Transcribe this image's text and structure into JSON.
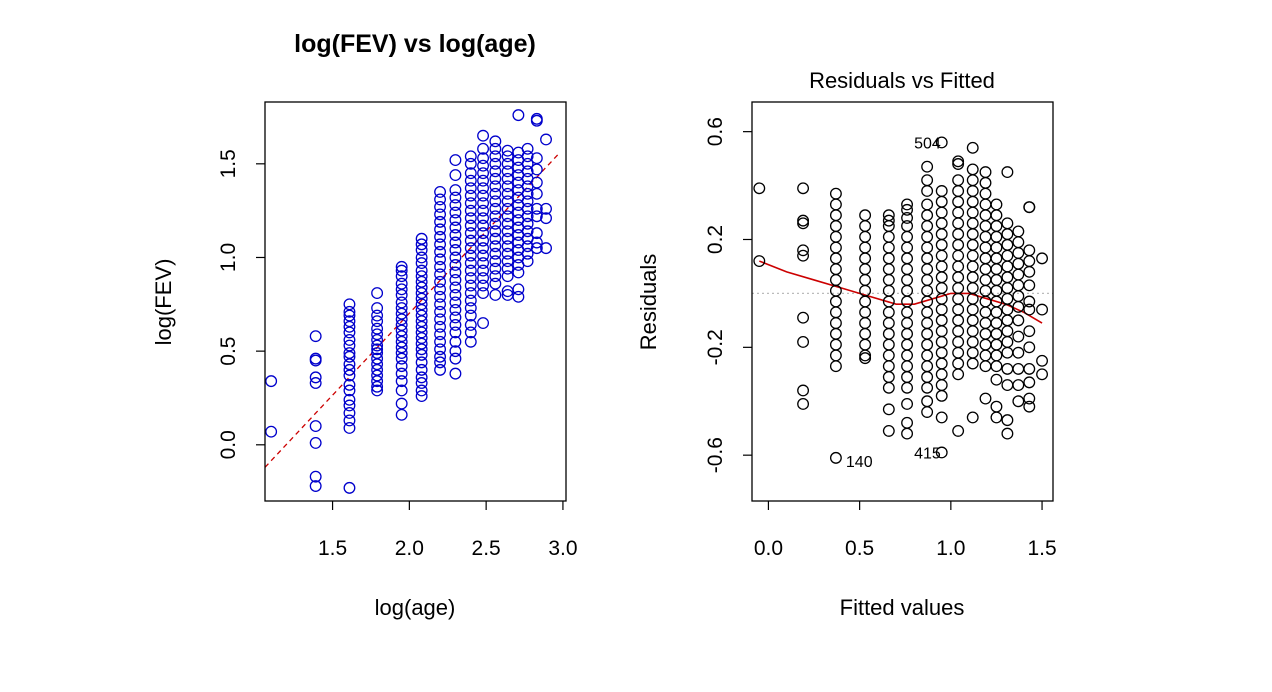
{
  "chart_data": [
    {
      "type": "scatter",
      "title": "log(FEV) vs log(age)",
      "xlabel": "log(age)",
      "ylabel": "log(FEV)",
      "xlim": [
        1.06,
        3.02
      ],
      "ylim": [
        -0.3,
        1.83
      ],
      "xticks": [
        "1.5",
        "2.0",
        "2.5",
        "3.0"
      ],
      "yticks": [
        "0.0",
        "0.5",
        "1.0",
        "1.5"
      ],
      "point_color": "#0000cc",
      "fit_line": {
        "style": "dashed",
        "color": "#cc0000",
        "x": [
          1.06,
          2.98
        ],
        "y": [
          -0.12,
          1.56
        ]
      },
      "x_levels": [
        1.1,
        1.39,
        1.61,
        1.79,
        1.95,
        2.08,
        2.2,
        2.3,
        2.4,
        2.48,
        2.56,
        2.64,
        2.71,
        2.77,
        2.83,
        2.89
      ],
      "columns": [
        {
          "x": 1.1,
          "y": [
            0.34,
            0.07
          ]
        },
        {
          "x": 1.39,
          "y": [
            0.58,
            0.46,
            0.45,
            0.36,
            0.33,
            0.1,
            0.01,
            -0.17,
            -0.22
          ]
        },
        {
          "x": 1.61,
          "y": [
            0.75,
            0.71,
            0.69,
            0.66,
            0.63,
            0.6,
            0.56,
            0.53,
            0.49,
            0.47,
            0.43,
            0.4,
            0.37,
            0.32,
            0.29,
            0.24,
            0.21,
            0.17,
            0.13,
            0.09,
            -0.23
          ]
        },
        {
          "x": 1.79,
          "y": [
            0.81,
            0.73,
            0.69,
            0.66,
            0.62,
            0.59,
            0.56,
            0.53,
            0.51,
            0.49,
            0.46,
            0.43,
            0.4,
            0.37,
            0.34,
            0.31,
            0.29
          ]
        },
        {
          "x": 1.95,
          "y": [
            0.95,
            0.93,
            0.9,
            0.86,
            0.83,
            0.8,
            0.76,
            0.73,
            0.7,
            0.67,
            0.64,
            0.61,
            0.58,
            0.55,
            0.52,
            0.49,
            0.46,
            0.42,
            0.38,
            0.34,
            0.29,
            0.22,
            0.16
          ]
        },
        {
          "x": 2.08,
          "y": [
            1.1,
            1.07,
            1.04,
            1.0,
            0.97,
            0.93,
            0.9,
            0.87,
            0.84,
            0.81,
            0.78,
            0.75,
            0.72,
            0.69,
            0.66,
            0.63,
            0.6,
            0.57,
            0.54,
            0.51,
            0.48,
            0.44,
            0.4,
            0.36,
            0.33,
            0.29,
            0.26
          ]
        },
        {
          "x": 2.2,
          "y": [
            1.35,
            1.31,
            1.27,
            1.23,
            1.19,
            1.15,
            1.11,
            1.07,
            1.03,
            0.99,
            0.95,
            0.91,
            0.87,
            0.83,
            0.79,
            0.75,
            0.71,
            0.67,
            0.63,
            0.59,
            0.55,
            0.51,
            0.47,
            0.44,
            0.4
          ]
        },
        {
          "x": 2.3,
          "y": [
            1.52,
            1.44,
            1.36,
            1.32,
            1.28,
            1.24,
            1.2,
            1.16,
            1.12,
            1.08,
            1.04,
            1.0,
            0.96,
            0.92,
            0.88,
            0.84,
            0.8,
            0.76,
            0.72,
            0.68,
            0.64,
            0.6,
            0.55,
            0.5,
            0.46,
            0.38
          ]
        },
        {
          "x": 2.4,
          "y": [
            1.54,
            1.5,
            1.45,
            1.41,
            1.37,
            1.33,
            1.29,
            1.25,
            1.21,
            1.17,
            1.13,
            1.09,
            1.05,
            1.01,
            0.97,
            0.93,
            0.89,
            0.85,
            0.81,
            0.77,
            0.73,
            0.69,
            0.64,
            0.6,
            0.55
          ]
        },
        {
          "x": 2.48,
          "y": [
            1.65,
            1.58,
            1.53,
            1.49,
            1.45,
            1.41,
            1.37,
            1.33,
            1.29,
            1.25,
            1.21,
            1.17,
            1.13,
            1.09,
            1.05,
            1.01,
            0.97,
            0.93,
            0.89,
            0.85,
            0.81,
            0.65
          ]
        },
        {
          "x": 2.56,
          "y": [
            1.62,
            1.58,
            1.54,
            1.5,
            1.46,
            1.42,
            1.38,
            1.34,
            1.3,
            1.26,
            1.22,
            1.18,
            1.14,
            1.1,
            1.06,
            1.02,
            0.98,
            0.94,
            0.9,
            0.86,
            0.8
          ]
        },
        {
          "x": 2.64,
          "y": [
            1.57,
            1.54,
            1.5,
            1.46,
            1.42,
            1.38,
            1.34,
            1.3,
            1.26,
            1.22,
            1.18,
            1.14,
            1.1,
            1.06,
            1.02,
            0.98,
            0.94,
            0.9,
            0.82,
            0.8
          ]
        },
        {
          "x": 2.71,
          "y": [
            1.76,
            1.56,
            1.52,
            1.48,
            1.44,
            1.4,
            1.36,
            1.32,
            1.28,
            1.24,
            1.2,
            1.16,
            1.12,
            1.08,
            1.04,
            1.0,
            0.96,
            0.92,
            0.83,
            0.79
          ]
        },
        {
          "x": 2.77,
          "y": [
            1.58,
            1.54,
            1.5,
            1.46,
            1.42,
            1.38,
            1.34,
            1.3,
            1.26,
            1.22,
            1.18,
            1.14,
            1.1,
            1.06,
            1.02,
            0.98
          ]
        },
        {
          "x": 2.83,
          "y": [
            1.74,
            1.73,
            1.53,
            1.47,
            1.4,
            1.34,
            1.26,
            1.22,
            1.13,
            1.08,
            1.05
          ]
        },
        {
          "x": 2.89,
          "y": [
            1.63,
            1.26,
            1.21,
            1.05
          ]
        }
      ]
    },
    {
      "type": "scatter",
      "title": "Residuals vs Fitted",
      "xlabel": "Fitted values",
      "ylabel": "Residuals",
      "xlim": [
        -0.09,
        1.56
      ],
      "ylim": [
        -0.77,
        0.71
      ],
      "xticks": [
        "0.0",
        "0.5",
        "1.0",
        "1.5"
      ],
      "yticks": [
        "-0.6",
        "-0.2",
        "0.2",
        "0.6"
      ],
      "point_color": "#000000",
      "zero_line": {
        "style": "dotted",
        "color": "#bbbbbb",
        "y": 0
      },
      "smooth": {
        "color": "#cc0000",
        "x": [
          -0.05,
          0.1,
          0.25,
          0.4,
          0.55,
          0.7,
          0.8,
          0.9,
          1.0,
          1.1,
          1.2,
          1.3,
          1.4,
          1.5
        ],
        "y": [
          0.12,
          0.08,
          0.05,
          0.02,
          -0.01,
          -0.04,
          -0.04,
          -0.02,
          0.0,
          0.0,
          -0.02,
          -0.04,
          -0.07,
          -0.11
        ]
      },
      "annotations": [
        {
          "label": "504",
          "x": 1.0,
          "y": 0.56
        },
        {
          "label": "140",
          "x": 0.37,
          "y": -0.61
        },
        {
          "label": "415",
          "x": 1.0,
          "y": -0.59
        }
      ],
      "columns": [
        {
          "x": -0.05,
          "y": [
            0.39,
            0.12
          ]
        },
        {
          "x": 0.19,
          "y": [
            0.39,
            0.27,
            0.26,
            0.16,
            0.14,
            -0.09,
            -0.18,
            -0.36,
            -0.41
          ]
        },
        {
          "x": 0.37,
          "y": [
            0.37,
            0.33,
            0.29,
            0.25,
            0.21,
            0.17,
            0.13,
            0.09,
            0.05,
            0.01,
            -0.03,
            -0.07,
            -0.11,
            -0.15,
            -0.19,
            -0.23,
            -0.27,
            -0.61
          ]
        },
        {
          "x": 0.53,
          "y": [
            0.29,
            0.25,
            0.21,
            0.17,
            0.13,
            0.09,
            0.05,
            0.01,
            -0.03,
            -0.07,
            -0.11,
            -0.15,
            -0.19,
            -0.23,
            -0.24
          ]
        },
        {
          "x": 0.66,
          "y": [
            0.29,
            0.27,
            0.25,
            0.21,
            0.17,
            0.13,
            0.09,
            0.05,
            0.01,
            -0.03,
            -0.07,
            -0.11,
            -0.15,
            -0.19,
            -0.23,
            -0.27,
            -0.31,
            -0.35,
            -0.43,
            -0.51
          ]
        },
        {
          "x": 0.76,
          "y": [
            0.33,
            0.31,
            0.28,
            0.25,
            0.21,
            0.17,
            0.13,
            0.09,
            0.05,
            0.01,
            -0.03,
            -0.07,
            -0.11,
            -0.15,
            -0.19,
            -0.23,
            -0.27,
            -0.31,
            -0.35,
            -0.41,
            -0.48,
            -0.52
          ]
        },
        {
          "x": 0.87,
          "y": [
            0.47,
            0.42,
            0.38,
            0.33,
            0.29,
            0.25,
            0.21,
            0.17,
            0.13,
            0.09,
            0.05,
            0.01,
            -0.03,
            -0.07,
            -0.11,
            -0.15,
            -0.19,
            -0.23,
            -0.27,
            -0.31,
            -0.35,
            -0.4,
            -0.44
          ]
        },
        {
          "x": 0.95,
          "y": [
            0.56,
            0.38,
            0.34,
            0.3,
            0.26,
            0.22,
            0.18,
            0.14,
            0.1,
            0.06,
            0.02,
            -0.02,
            -0.06,
            -0.1,
            -0.14,
            -0.18,
            -0.22,
            -0.26,
            -0.3,
            -0.34,
            -0.38,
            -0.46,
            -0.59
          ]
        },
        {
          "x": 1.04,
          "y": [
            0.49,
            0.48,
            0.42,
            0.38,
            0.34,
            0.3,
            0.26,
            0.22,
            0.18,
            0.14,
            0.1,
            0.06,
            0.02,
            -0.02,
            -0.06,
            -0.1,
            -0.14,
            -0.18,
            -0.22,
            -0.26,
            -0.3,
            -0.51
          ]
        },
        {
          "x": 1.12,
          "y": [
            0.54,
            0.46,
            0.42,
            0.38,
            0.34,
            0.3,
            0.26,
            0.22,
            0.18,
            0.14,
            0.1,
            0.06,
            0.02,
            -0.02,
            -0.06,
            -0.1,
            -0.14,
            -0.18,
            -0.22,
            -0.26,
            -0.46
          ]
        },
        {
          "x": 1.19,
          "y": [
            0.45,
            0.41,
            0.37,
            0.33,
            0.29,
            0.25,
            0.21,
            0.17,
            0.13,
            0.09,
            0.05,
            0.01,
            -0.03,
            -0.07,
            -0.11,
            -0.15,
            -0.19,
            -0.23,
            -0.27,
            -0.39
          ]
        },
        {
          "x": 1.25,
          "y": [
            0.33,
            0.29,
            0.25,
            0.21,
            0.17,
            0.13,
            0.09,
            0.05,
            0.01,
            -0.03,
            -0.07,
            -0.11,
            -0.15,
            -0.19,
            -0.23,
            -0.27,
            -0.32,
            -0.42,
            -0.46
          ]
        },
        {
          "x": 1.31,
          "y": [
            0.45,
            0.26,
            0.22,
            0.18,
            0.14,
            0.1,
            0.06,
            0.02,
            -0.02,
            -0.06,
            -0.1,
            -0.14,
            -0.18,
            -0.22,
            -0.28,
            -0.34,
            -0.47,
            -0.52
          ]
        },
        {
          "x": 1.37,
          "y": [
            0.23,
            0.19,
            0.15,
            0.11,
            0.07,
            0.03,
            -0.01,
            -0.05,
            -0.1,
            -0.16,
            -0.22,
            -0.28,
            -0.34,
            -0.4
          ]
        },
        {
          "x": 1.43,
          "y": [
            0.32,
            0.32,
            0.16,
            0.12,
            0.08,
            0.03,
            -0.03,
            -0.06,
            -0.14,
            -0.2,
            -0.28,
            -0.33,
            -0.39,
            -0.42
          ]
        },
        {
          "x": 1.5,
          "y": [
            0.13,
            -0.06,
            -0.25,
            -0.3
          ]
        }
      ]
    }
  ]
}
